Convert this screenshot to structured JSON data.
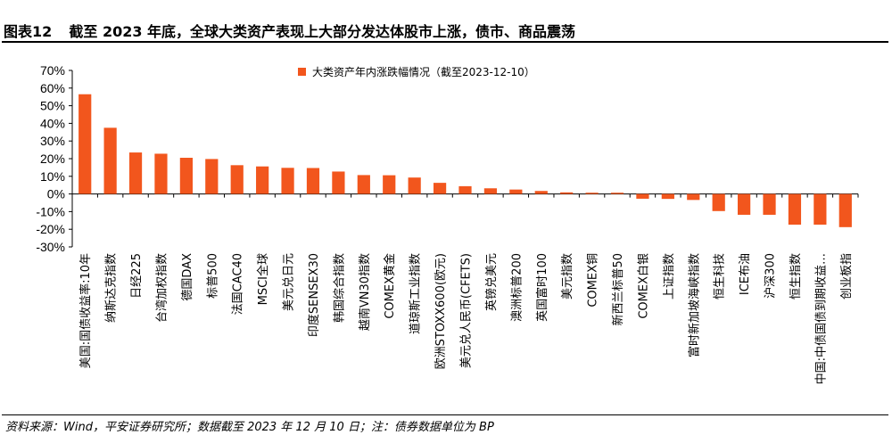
{
  "header": {
    "figure_label": "图表12",
    "title": "截至 2023 年底，全球大类资产表现上大部分发达体股市上涨，债市、商品震荡"
  },
  "footer": {
    "source": "资料来源：Wind，平安证券研究所；数据截至 2023 年 12 月 10 日；注：债券数据单位为 BP"
  },
  "colors": {
    "bar": "#F2561D",
    "axis": "#000000",
    "text": "#000000"
  },
  "chart_data": {
    "type": "bar",
    "title": "",
    "xlabel": "",
    "ylabel": "",
    "ylim": [
      -0.3,
      0.7
    ],
    "ytick_labels": [
      "70%",
      "60%",
      "50%",
      "40%",
      "30%",
      "20%",
      "10%",
      "0%",
      "-10%",
      "-20%",
      "-30%"
    ],
    "legend": {
      "position": "top-center",
      "label": "大类资产年内涨跌幅情况（截至2023-12-10）"
    },
    "grid": false,
    "categories": [
      "美国:国债收益率:10年",
      "纳斯达克指数",
      "日经225",
      "台湾加权指数",
      "德国DAX",
      "标普500",
      "法国CAC40",
      "MSCI全球",
      "美元兑日元",
      "印度SENSEX30",
      "韩国综合指数",
      "越南VN30指数",
      "COMEX黄金",
      "道琼斯工业指数",
      "欧洲STOXX600(欧元)",
      "美元兑人民币(CFETS)",
      "英镑兑美元",
      "澳洲标普200",
      "英国富时100",
      "美元指数",
      "COMEX铜",
      "新西兰标普50",
      "COMEX白银",
      "上证指数",
      "富时新加坡海峡指数",
      "恒生科技",
      "ICE布油",
      "沪深300",
      "恒生指数",
      "中国:中债国债到期收益…",
      "创业板指"
    ],
    "series": [
      {
        "values": [
          0.565,
          0.375,
          0.235,
          0.228,
          0.205,
          0.198,
          0.163,
          0.156,
          0.148,
          0.147,
          0.127,
          0.107,
          0.106,
          0.093,
          0.063,
          0.044,
          0.032,
          0.025,
          0.017,
          0.009,
          0.007,
          0.007,
          -0.027,
          -0.028,
          -0.034,
          -0.097,
          -0.118,
          -0.118,
          -0.174,
          -0.174,
          -0.188
        ]
      }
    ]
  }
}
